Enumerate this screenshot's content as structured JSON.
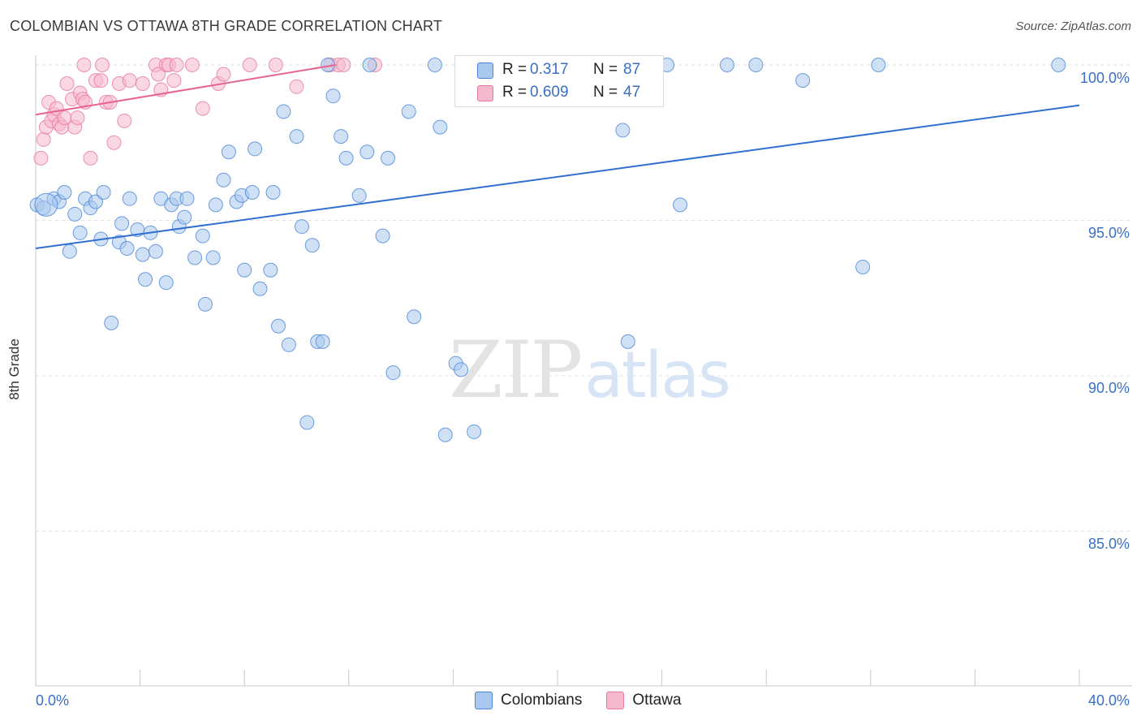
{
  "title": "COLOMBIAN VS OTTAWA 8TH GRADE CORRELATION CHART",
  "source": "Source: ZipAtlas.com",
  "watermark": {
    "zip": "ZIP",
    "atlas": "atlas"
  },
  "colors": {
    "blue": "#4a86d8",
    "blue_fill": "#aac8ef",
    "blue_line": "#2f6fd0",
    "pink": "#e8789c",
    "pink_fill": "#f6b8cc",
    "pink_line": "#e6648e",
    "accent_text": "#3a6fc4",
    "grid": "#e2e2e2"
  },
  "legend_top": [
    {
      "r_label": "R =",
      "r_value": "0.317",
      "n_label": "N =",
      "n_value": "87",
      "swatch": "#aac8ef"
    },
    {
      "r_label": "R =",
      "r_value": "0.609",
      "n_label": "N =",
      "n_value": "47",
      "swatch": "#f6b8cc"
    }
  ],
  "legend_bottom": [
    {
      "label": "Colombians",
      "swatch": "#aac8ef"
    },
    {
      "label": "Ottawa",
      "swatch": "#f6b8cc"
    }
  ],
  "chart_data": {
    "type": "scatter",
    "title": "COLOMBIAN VS OTTAWA 8TH GRADE CORRELATION CHART",
    "xlabel": "",
    "ylabel": "8th Grade",
    "xlim": [
      0,
      40
    ],
    "ylim": [
      80.3,
      101
    ],
    "x_tick_labels": [
      "0.0%",
      "40.0%"
    ],
    "y_ticks": [
      85,
      90,
      95,
      100
    ],
    "y_tick_labels": [
      "85.0%",
      "90.0%",
      "95.0%",
      "100.0%"
    ],
    "grid": true,
    "legend_placement": "top-center",
    "series": [
      {
        "name": "Colombians",
        "R": 0.317,
        "N": 87,
        "trend": {
          "x": [
            0,
            40
          ],
          "y": [
            94.1,
            98.7
          ]
        },
        "points": [
          [
            0.05,
            95.5
          ],
          [
            0.3,
            95.4
          ],
          [
            0.7,
            95.7
          ],
          [
            0.9,
            95.6
          ],
          [
            1.1,
            95.9
          ],
          [
            1.3,
            94.0
          ],
          [
            1.5,
            95.2
          ],
          [
            1.7,
            94.6
          ],
          [
            1.9,
            95.7
          ],
          [
            2.1,
            95.4
          ],
          [
            2.3,
            95.6
          ],
          [
            2.5,
            94.4
          ],
          [
            2.6,
            95.9
          ],
          [
            2.9,
            91.7
          ],
          [
            3.2,
            94.3
          ],
          [
            3.3,
            94.9
          ],
          [
            3.5,
            94.1
          ],
          [
            3.6,
            95.7
          ],
          [
            3.9,
            94.7
          ],
          [
            4.1,
            93.9
          ],
          [
            4.2,
            93.1
          ],
          [
            4.4,
            94.6
          ],
          [
            4.6,
            94.0
          ],
          [
            4.8,
            95.7
          ],
          [
            5.0,
            93.0
          ],
          [
            5.2,
            95.5
          ],
          [
            5.4,
            95.7
          ],
          [
            5.5,
            94.8
          ],
          [
            5.7,
            95.1
          ],
          [
            5.8,
            95.7
          ],
          [
            6.1,
            93.8
          ],
          [
            6.4,
            94.5
          ],
          [
            6.5,
            92.3
          ],
          [
            6.8,
            93.8
          ],
          [
            6.9,
            95.5
          ],
          [
            7.2,
            96.3
          ],
          [
            7.4,
            97.2
          ],
          [
            7.7,
            95.6
          ],
          [
            7.9,
            95.8
          ],
          [
            8.0,
            93.4
          ],
          [
            8.3,
            95.9
          ],
          [
            8.4,
            97.3
          ],
          [
            8.6,
            92.8
          ],
          [
            9.0,
            93.4
          ],
          [
            9.1,
            95.9
          ],
          [
            9.3,
            91.6
          ],
          [
            9.5,
            98.5
          ],
          [
            9.7,
            91.0
          ],
          [
            10.0,
            97.7
          ],
          [
            10.2,
            94.8
          ],
          [
            10.4,
            88.5
          ],
          [
            10.6,
            94.2
          ],
          [
            10.8,
            91.1
          ],
          [
            11.0,
            91.1
          ],
          [
            11.2,
            100
          ],
          [
            11.4,
            99.0
          ],
          [
            11.7,
            97.7
          ],
          [
            11.9,
            97.0
          ],
          [
            12.4,
            95.8
          ],
          [
            12.7,
            97.2
          ],
          [
            12.8,
            100
          ],
          [
            13.3,
            94.5
          ],
          [
            13.5,
            97.0
          ],
          [
            13.7,
            90.1
          ],
          [
            14.3,
            98.5
          ],
          [
            14.5,
            91.9
          ],
          [
            15.3,
            100
          ],
          [
            15.5,
            98.0
          ],
          [
            15.7,
            88.1
          ],
          [
            16.1,
            90.4
          ],
          [
            16.3,
            90.2
          ],
          [
            16.4,
            100
          ],
          [
            16.8,
            88.2
          ],
          [
            17.3,
            100
          ],
          [
            18.4,
            100
          ],
          [
            19.7,
            100
          ],
          [
            22.5,
            97.9
          ],
          [
            22.7,
            91.1
          ],
          [
            24.2,
            100
          ],
          [
            24.7,
            95.5
          ],
          [
            26.5,
            100
          ],
          [
            27.6,
            100
          ],
          [
            29.4,
            99.5
          ],
          [
            31.7,
            93.5
          ],
          [
            32.3,
            100
          ],
          [
            39.2,
            100
          ],
          [
            0.4,
            95.5
          ]
        ]
      },
      {
        "name": "Ottawa",
        "R": 0.609,
        "N": 47,
        "trend": {
          "x": [
            0,
            11.5
          ],
          "y": [
            98.4,
            100
          ]
        },
        "points": [
          [
            0.2,
            97.0
          ],
          [
            0.3,
            97.6
          ],
          [
            0.4,
            98.0
          ],
          [
            0.5,
            98.8
          ],
          [
            0.6,
            98.2
          ],
          [
            0.7,
            98.4
          ],
          [
            0.8,
            98.6
          ],
          [
            0.9,
            98.1
          ],
          [
            1.0,
            98.0
          ],
          [
            1.1,
            98.3
          ],
          [
            1.2,
            99.4
          ],
          [
            1.4,
            98.9
          ],
          [
            1.5,
            98.0
          ],
          [
            1.6,
            98.3
          ],
          [
            1.7,
            99.1
          ],
          [
            1.8,
            98.9
          ],
          [
            1.85,
            100
          ],
          [
            1.9,
            98.8
          ],
          [
            2.1,
            97.0
          ],
          [
            2.3,
            99.5
          ],
          [
            2.5,
            99.5
          ],
          [
            2.55,
            100
          ],
          [
            2.7,
            98.8
          ],
          [
            2.85,
            98.8
          ],
          [
            3.0,
            97.5
          ],
          [
            3.2,
            99.4
          ],
          [
            3.4,
            98.2
          ],
          [
            3.6,
            99.5
          ],
          [
            4.1,
            99.4
          ],
          [
            4.6,
            100
          ],
          [
            4.7,
            99.7
          ],
          [
            4.8,
            99.2
          ],
          [
            5.0,
            100
          ],
          [
            5.1,
            100
          ],
          [
            5.3,
            99.5
          ],
          [
            5.4,
            100
          ],
          [
            6.0,
            100
          ],
          [
            6.4,
            98.6
          ],
          [
            7.0,
            99.4
          ],
          [
            7.2,
            99.7
          ],
          [
            8.2,
            100
          ],
          [
            9.2,
            100
          ],
          [
            10.0,
            99.3
          ],
          [
            11.3,
            100
          ],
          [
            11.6,
            100
          ],
          [
            11.8,
            100
          ],
          [
            13.0,
            100
          ]
        ]
      }
    ]
  }
}
